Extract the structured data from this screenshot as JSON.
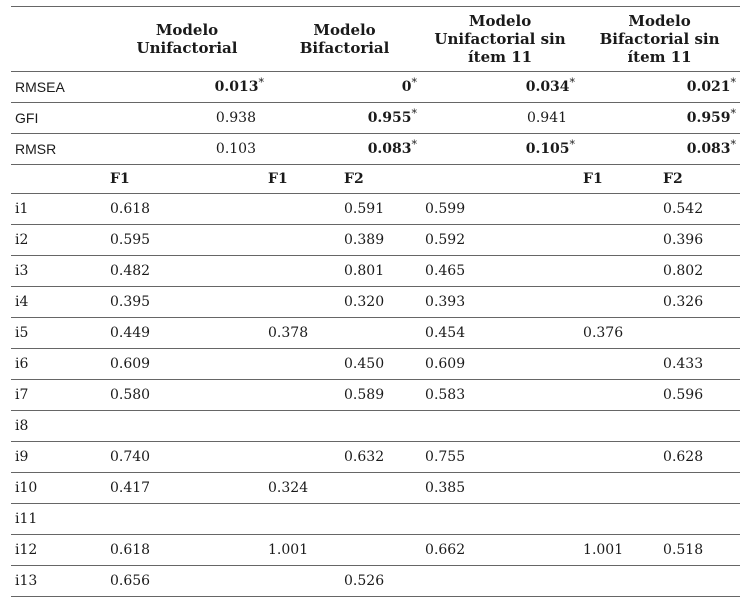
{
  "header": {
    "model1": "Modelo Unifactorial",
    "model2": "Modelo Bifactorial",
    "model3": "Modelo Unifactorial sin ítem 11",
    "model4": "Modelo Bifactorial sin ítem 11"
  },
  "fit": {
    "rmsea": {
      "label": "RMSEA",
      "m1": "0.013",
      "m1_sup": "*",
      "m2": "0",
      "m2_sup": "*",
      "m3": "0.034",
      "m3_sup": "*",
      "m4": "0.021",
      "m4_sup": "*"
    },
    "gfi": {
      "label": "GFI",
      "m1": "0.938",
      "m2": "0.955",
      "m2_sup": "*",
      "m3": "0.941",
      "m4": "0.959",
      "m4_sup": "*"
    },
    "rmsr": {
      "label": "RMSR",
      "m1": "0.103",
      "m2": "0.083",
      "m2_sup": "*",
      "m3": "0.105",
      "m3_sup": "*",
      "m4": "0.083",
      "m4_sup": "*"
    }
  },
  "subheader": {
    "f1_a": "F1",
    "f1_b": "F1",
    "f2_b": "F2",
    "f1_d": "F1",
    "f2_d": "F2"
  },
  "items": [
    {
      "label": "i1",
      "c1": "0.618",
      "c2": "",
      "c3": "0.591",
      "c4": "0.599",
      "c5": "",
      "c6": "0.542"
    },
    {
      "label": "i2",
      "c1": "0.595",
      "c2": "",
      "c3": "0.389",
      "c4": "0.592",
      "c5": "",
      "c6": "0.396"
    },
    {
      "label": "i3",
      "c1": "0.482",
      "c2": "",
      "c3": "0.801",
      "c4": "0.465",
      "c5": "",
      "c6": "0.802"
    },
    {
      "label": "i4",
      "c1": "0.395",
      "c2": "",
      "c3": "0.320",
      "c4": "0.393",
      "c5": "",
      "c6": "0.326"
    },
    {
      "label": "i5",
      "c1": "0.449",
      "c2": "0.378",
      "c3": "",
      "c4": "0.454",
      "c5": "0.376",
      "c6": ""
    },
    {
      "label": "i6",
      "c1": "0.609",
      "c2": "",
      "c3": "0.450",
      "c4": "0.609",
      "c5": "",
      "c6": "0.433"
    },
    {
      "label": "i7",
      "c1": "0.580",
      "c2": "",
      "c3": "0.589",
      "c4": "0.583",
      "c5": "",
      "c6": "0.596"
    },
    {
      "label": "i8",
      "c1": "",
      "c2": "",
      "c3": "",
      "c4": "",
      "c5": "",
      "c6": ""
    },
    {
      "label": "i9",
      "c1": "0.740",
      "c2": "",
      "c3": "0.632",
      "c4": "0.755",
      "c5": "",
      "c6": "0.628"
    },
    {
      "label": "i10",
      "c1": "0.417",
      "c2": "0.324",
      "c3": "",
      "c4": "0.385",
      "c5": "",
      "c6": ""
    },
    {
      "label": "i11",
      "c1": "",
      "c2": "",
      "c3": "",
      "c4": "",
      "c5": "",
      "c6": ""
    },
    {
      "label": "i12",
      "c1": "0.618",
      "c2": "1.001",
      "c3": "",
      "c4": "0.662",
      "c5": "1.001",
      "c6": "0.518"
    },
    {
      "label": "i13",
      "c1": "0.656",
      "c2": "",
      "c3": "0.526",
      "c4": "",
      "c5": "",
      "c6": ""
    }
  ]
}
